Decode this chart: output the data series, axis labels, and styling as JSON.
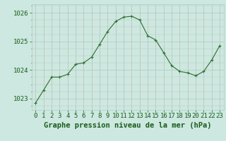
{
  "x": [
    0,
    1,
    2,
    3,
    4,
    5,
    6,
    7,
    8,
    9,
    10,
    11,
    12,
    13,
    14,
    15,
    16,
    17,
    18,
    19,
    20,
    21,
    22,
    23
  ],
  "y": [
    1022.85,
    1023.3,
    1023.75,
    1023.75,
    1023.85,
    1024.2,
    1024.25,
    1024.45,
    1024.9,
    1025.35,
    1025.7,
    1025.85,
    1025.88,
    1025.75,
    1025.2,
    1025.05,
    1024.6,
    1024.15,
    1023.95,
    1023.9,
    1023.8,
    1023.95,
    1024.35,
    1024.85
  ],
  "title": "Graphe pression niveau de la mer (hPa)",
  "bg_color": "#cce8e0",
  "grid_color_major": "#aaccc4",
  "line_color": "#2d6e2d",
  "marker_color": "#2d6e2d",
  "text_color": "#1a5c1a",
  "ylim": [
    1022.6,
    1026.3
  ],
  "yticks": [
    1023,
    1024,
    1025,
    1026
  ],
  "xlim": [
    -0.5,
    23.5
  ],
  "tick_fontsize": 6.5,
  "title_fontsize": 7.5
}
